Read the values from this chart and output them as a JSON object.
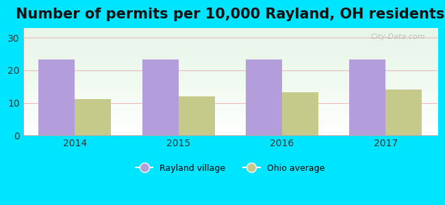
{
  "title": "Number of permits per 10,000 Rayland, OH residents",
  "years": [
    2014,
    2015,
    2016,
    2017
  ],
  "rayland_values": [
    23.3,
    23.3,
    23.3,
    23.3
  ],
  "ohio_values": [
    11.1,
    12.0,
    13.3,
    14.0
  ],
  "rayland_color": "#b39ddb",
  "ohio_color": "#c5c98a",
  "ylim": [
    0,
    33
  ],
  "yticks": [
    0,
    10,
    20,
    30
  ],
  "bar_width": 0.35,
  "bg_color": "#00e5ff",
  "title_fontsize": 15,
  "legend_rayland": "Rayland village",
  "legend_ohio": "Ohio average",
  "watermark": "City-Data.com"
}
